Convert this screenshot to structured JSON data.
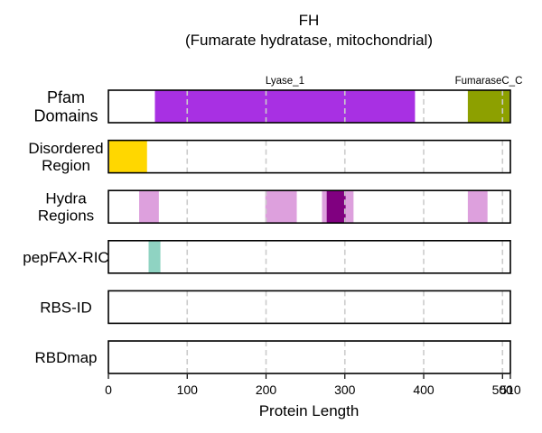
{
  "chart_data": {
    "type": "bar",
    "orientation": "horizontal-tracks",
    "title": "FH",
    "subtitle": "(Fumarate hydratase, mitochondrial)",
    "xlabel": "Protein Length",
    "xlim": [
      0,
      510
    ],
    "x_ticks": [
      0,
      100,
      200,
      300,
      400,
      500,
      510
    ],
    "x_tick_labels": [
      "0",
      "100",
      "200",
      "300",
      "400",
      "500",
      "510"
    ],
    "gridlines": {
      "orientation": "vertical",
      "style": "dashed",
      "color": "#cccccc",
      "positions": [
        100,
        200,
        300,
        400,
        500
      ]
    },
    "tracks": [
      {
        "label": "Pfam\nDomains",
        "segments": [
          {
            "start": 59,
            "end": 389,
            "color": "#a830e3",
            "label": "Lyase_1"
          },
          {
            "start": 456,
            "end": 509,
            "color": "#8da000",
            "label": "FumaraseC_C"
          }
        ]
      },
      {
        "label": "Disordered\nRegion",
        "segments": [
          {
            "start": 1,
            "end": 49,
            "color": "#ffd700"
          }
        ]
      },
      {
        "label": "Hydra\nRegions",
        "segments": [
          {
            "start": 39,
            "end": 64,
            "color": "#dda0dd"
          },
          {
            "start": 199,
            "end": 239,
            "color": "#dda0dd"
          },
          {
            "start": 271,
            "end": 311,
            "color": "#dda0dd"
          },
          {
            "start": 277,
            "end": 301,
            "color": "#800080"
          },
          {
            "start": 456,
            "end": 481,
            "color": "#dda0dd"
          }
        ]
      },
      {
        "label": "pepFAX-RIC",
        "segments": [
          {
            "start": 51,
            "end": 66,
            "color": "#8fd3c2"
          }
        ]
      },
      {
        "label": "RBS-ID",
        "segments": []
      },
      {
        "label": "RBDmap",
        "segments": []
      }
    ]
  }
}
